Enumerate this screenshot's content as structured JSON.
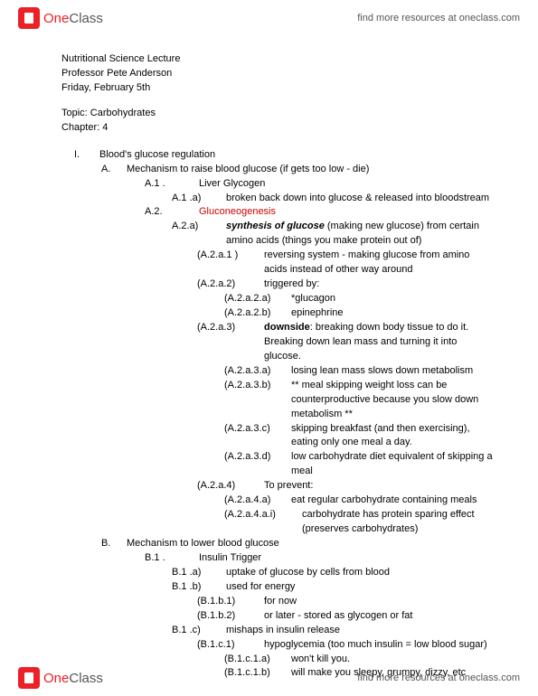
{
  "brand": {
    "one": "One",
    "class": "Class"
  },
  "headerLink": "find more resources at oneclass.com",
  "footerLink": "find more resources at oneclass.com",
  "meta": {
    "line1": "Nutritional Science Lecture",
    "line2": "Professor Pete Anderson",
    "line3": "Friday, February 5th"
  },
  "topic": {
    "line1": "Topic: Carbohydrates",
    "line2": "Chapter: 4"
  },
  "outline": {
    "i": {
      "marker": "I.",
      "text": "Blood's glucose regulation"
    },
    "a": {
      "marker": "A.",
      "text": "Mechanism to raise blood glucose (if gets too low - die)"
    },
    "a1": {
      "marker": "A.1 .",
      "text": "Liver Glycogen"
    },
    "a1a": {
      "marker": "A.1 .a)",
      "text": "broken back down into glucose & released into bloodstream"
    },
    "a2": {
      "marker": "A.2.",
      "text": "Gluconeogenesis"
    },
    "a2a": {
      "marker": "A.2.a)",
      "bold": "synthesis of glucose",
      "rest": " (making new glucose) from certain amino acids (things you make protein out of)"
    },
    "a2a1": {
      "marker": "(A.2.a.1 )",
      "text": "reversing system - making glucose from amino acids instead of other way around"
    },
    "a2a2": {
      "marker": "(A.2.a.2)",
      "text": "triggered by:"
    },
    "a2a2a": {
      "marker": "(A.2.a.2.a)",
      "text": "*glucagon"
    },
    "a2a2b": {
      "marker": "(A.2.a.2.b)",
      "text": "epinephrine"
    },
    "a2a3": {
      "marker": "(A.2.a.3)",
      "bold": "downside",
      "rest": ": breaking down body tissue to do it. Breaking down lean mass and turning it into glucose."
    },
    "a2a3a": {
      "marker": "(A.2.a.3.a)",
      "text": "losing lean mass slows down metabolism"
    },
    "a2a3b": {
      "marker": "(A.2.a.3.b)",
      "text": "** meal skipping weight loss can be counterproductive because you slow down metabolism **"
    },
    "a2a3c": {
      "marker": "(A.2.a.3.c)",
      "text": "skipping breakfast (and then exercising), eating only one meal a day."
    },
    "a2a3d": {
      "marker": "(A.2.a.3.d)",
      "text": "low carbohydrate diet equivalent of skipping a meal"
    },
    "a2a4": {
      "marker": "(A.2.a.4)",
      "text": "To prevent:"
    },
    "a2a4a": {
      "marker": "(A.2.a.4.a)",
      "text": "eat regular carbohydrate containing meals"
    },
    "a2a4ai": {
      "marker": "(A.2.a.4.a.i)",
      "text": "carbohydrate has protein sparing effect (preserves carbohydrates)"
    },
    "b": {
      "marker": "B.",
      "text": "Mechanism to lower blood glucose"
    },
    "b1": {
      "marker": "B.1 .",
      "text": "Insulin Trigger"
    },
    "b1a": {
      "marker": "B.1 .a)",
      "text": "uptake of glucose by cells from blood"
    },
    "b1b": {
      "marker": "B.1 .b)",
      "text": "used for energy"
    },
    "b1b1": {
      "marker": "(B.1.b.1)",
      "text": "for now"
    },
    "b1b2": {
      "marker": "(B.1.b.2)",
      "text": "or later - stored as glycogen or fat"
    },
    "b1c": {
      "marker": "B.1 .c)",
      "text": "mishaps in insulin release"
    },
    "b1c1": {
      "marker": "(B.1.c.1)",
      "text": "hypoglycemia (too much insulin = low blood sugar)"
    },
    "b1c1a": {
      "marker": "(B.1.c.1.a)",
      "text": "won't kill you."
    },
    "b1c1b": {
      "marker": "(B.1.c.1.b)",
      "text": "will make you sleepy, grumpy, dizzy, etc"
    }
  }
}
